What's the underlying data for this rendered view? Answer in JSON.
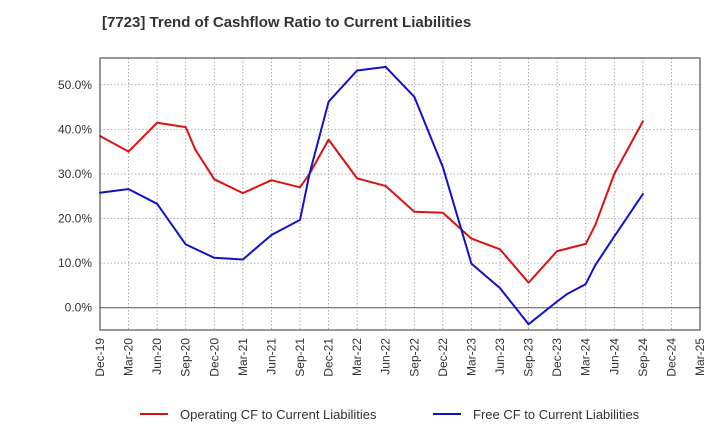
{
  "chart_data": {
    "type": "line",
    "title": "[7723]  Trend of Cashflow Ratio to Current Liabilities",
    "xlabel": "",
    "ylabel": "",
    "x_ticks": [
      "Dec-19",
      "Mar-20",
      "Jun-20",
      "Sep-20",
      "Dec-20",
      "Mar-21",
      "Jun-21",
      "Sep-21",
      "Dec-21",
      "Mar-22",
      "Jun-22",
      "Sep-22",
      "Dec-22",
      "Mar-23",
      "Jun-23",
      "Sep-23",
      "Dec-23",
      "Mar-24",
      "Jun-24",
      "Sep-24",
      "Dec-24",
      "Mar-25"
    ],
    "y_ticks": [
      0,
      10,
      20,
      30,
      40,
      50
    ],
    "y_tick_suffix": "%",
    "ylim": [
      -5,
      56
    ],
    "grid": true,
    "legend_position": "bottom",
    "series": [
      {
        "name": "Operating CF to Current Liabilities",
        "color": "#dd1111",
        "points": [
          {
            "x": "Dec-19",
            "y": 38.5
          },
          {
            "x": "Mar-20",
            "y": 35.0
          },
          {
            "x": "Jun-20",
            "y": 41.5
          },
          {
            "x": "Sep-20",
            "y": 40.5
          },
          {
            "x": "Oct-20",
            "y": 35.5
          },
          {
            "x": "Dec-20",
            "y": 28.8
          },
          {
            "x": "Mar-21",
            "y": 25.7
          },
          {
            "x": "Jun-21",
            "y": 28.6
          },
          {
            "x": "Sep-21",
            "y": 27.0
          },
          {
            "x": "Oct-21",
            "y": 30.0
          },
          {
            "x": "Dec-21",
            "y": 37.7
          },
          {
            "x": "Mar-22",
            "y": 29.0
          },
          {
            "x": "Jun-22",
            "y": 27.3
          },
          {
            "x": "Sep-22",
            "y": 21.5
          },
          {
            "x": "Dec-22",
            "y": 21.3
          },
          {
            "x": "Mar-23",
            "y": 15.5
          },
          {
            "x": "Jun-23",
            "y": 13.1
          },
          {
            "x": "Sep-23",
            "y": 5.6
          },
          {
            "x": "Dec-23",
            "y": 12.7
          },
          {
            "x": "Mar-24",
            "y": 14.3
          },
          {
            "x": "Apr-24",
            "y": 18.5
          },
          {
            "x": "Jun-24",
            "y": 30.0
          },
          {
            "x": "Sep-24",
            "y": 41.8
          }
        ]
      },
      {
        "name": "Free CF to Current Liabilities",
        "color": "#1111cc",
        "points": [
          {
            "x": "Dec-19",
            "y": 25.8
          },
          {
            "x": "Mar-20",
            "y": 26.6
          },
          {
            "x": "Jun-20",
            "y": 23.3
          },
          {
            "x": "Sep-20",
            "y": 14.2
          },
          {
            "x": "Dec-20",
            "y": 11.2
          },
          {
            "x": "Mar-21",
            "y": 10.8
          },
          {
            "x": "Jun-21",
            "y": 16.3
          },
          {
            "x": "Sep-21",
            "y": 19.7
          },
          {
            "x": "Oct-21",
            "y": 30.0
          },
          {
            "x": "Dec-21",
            "y": 46.2
          },
          {
            "x": "Mar-22",
            "y": 53.2
          },
          {
            "x": "Jun-22",
            "y": 54.0
          },
          {
            "x": "Sep-22",
            "y": 47.3
          },
          {
            "x": "Dec-22",
            "y": 31.5
          },
          {
            "x": "Mar-23",
            "y": 9.9
          },
          {
            "x": "Jun-23",
            "y": 4.4
          },
          {
            "x": "Sep-23",
            "y": -3.7
          },
          {
            "x": "Dec-23",
            "y": 1.4
          },
          {
            "x": "Jan-24",
            "y": 3.0
          },
          {
            "x": "Mar-24",
            "y": 5.3
          },
          {
            "x": "Apr-24",
            "y": 9.5
          },
          {
            "x": "Jun-24",
            "y": 16.0
          },
          {
            "x": "Sep-24",
            "y": 25.5
          }
        ]
      }
    ]
  }
}
